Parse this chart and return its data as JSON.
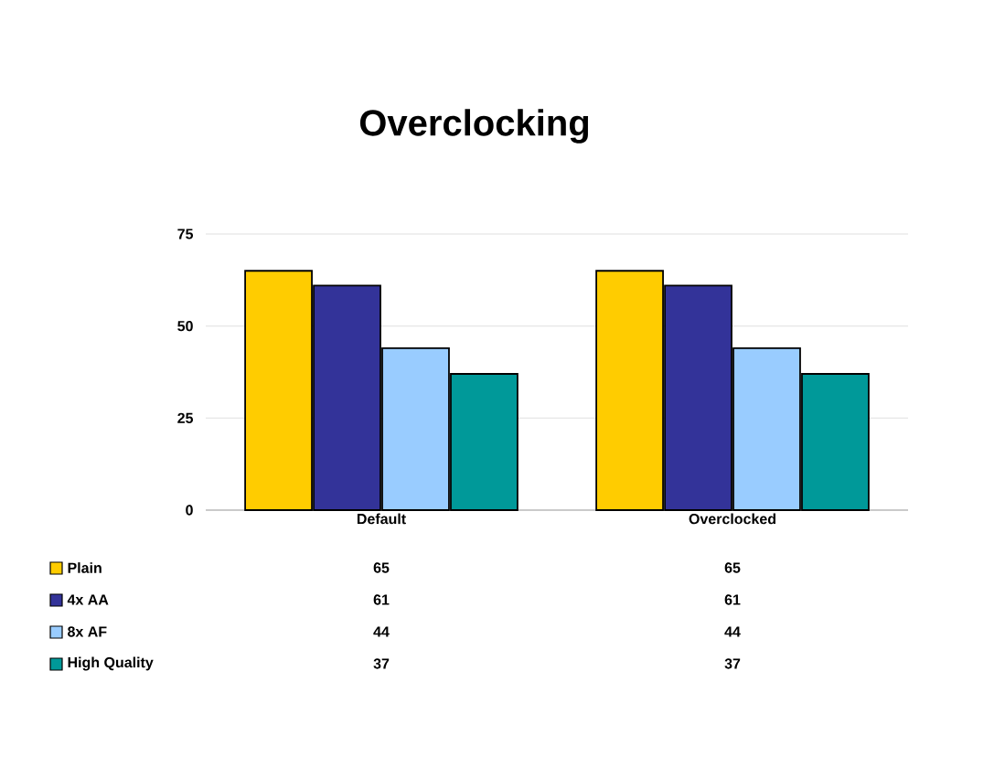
{
  "chart_data": {
    "type": "bar",
    "title": "Overclocking",
    "categories": [
      "Default",
      "Overclocked"
    ],
    "series": [
      {
        "name": "Plain",
        "color": "#ffcc00",
        "values": [
          65,
          65
        ]
      },
      {
        "name": "4x AA",
        "color": "#333399",
        "values": [
          61,
          61
        ]
      },
      {
        "name": "8x AF",
        "color": "#99ccff",
        "values": [
          44,
          44
        ]
      },
      {
        "name": "High Quality",
        "color": "#009999",
        "values": [
          37,
          37
        ]
      }
    ],
    "ylim": [
      0,
      75
    ],
    "yticks": [
      0,
      25,
      50,
      75
    ],
    "grid": "y",
    "legend": "bottom",
    "data_labels": true
  }
}
